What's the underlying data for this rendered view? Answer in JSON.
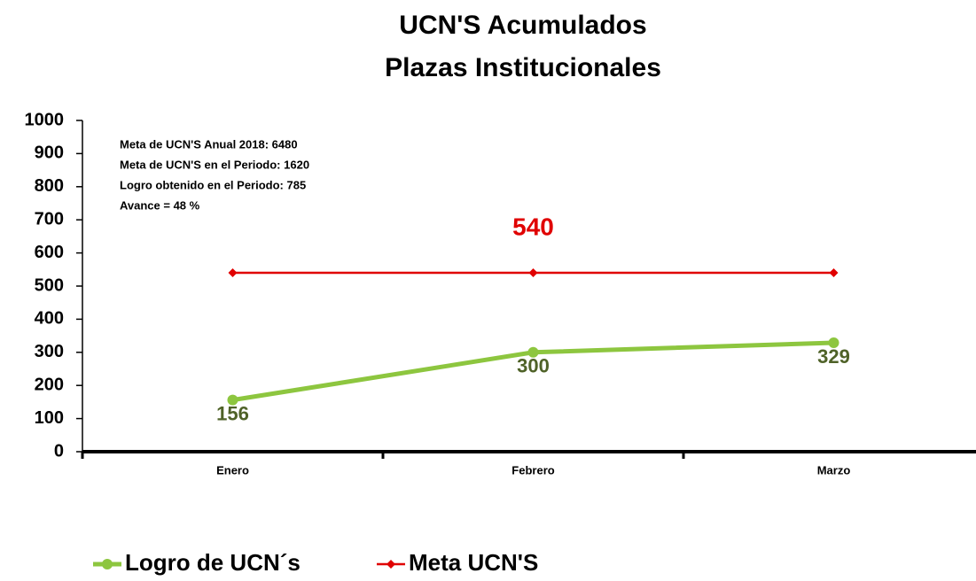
{
  "chart_data": {
    "type": "line",
    "title": [
      "UCN'S Acumulados",
      "Plazas Institucionales"
    ],
    "annotations": [
      "Meta de UCN'S Anual 2018:  6480",
      "Meta de UCN'S en el Periodo: 1620",
      "Logro obtenido en el Periodo: 785",
      "Avance = 48 %"
    ],
    "categories": [
      "Enero",
      "Febrero",
      "Marzo"
    ],
    "series": [
      {
        "name": "Logro de UCN´s",
        "color": "#8dc63f",
        "label_color": "#4f6228",
        "values": [
          156,
          300,
          329
        ]
      },
      {
        "name": "Meta UCN'S",
        "color": "#e00000",
        "label_color": "#e00000",
        "values": [
          540,
          540,
          540
        ]
      }
    ],
    "ylim": [
      0,
      1000
    ],
    "yticks": [
      0,
      100,
      200,
      300,
      400,
      500,
      600,
      700,
      800,
      900,
      1000
    ],
    "legend": "bottom"
  }
}
